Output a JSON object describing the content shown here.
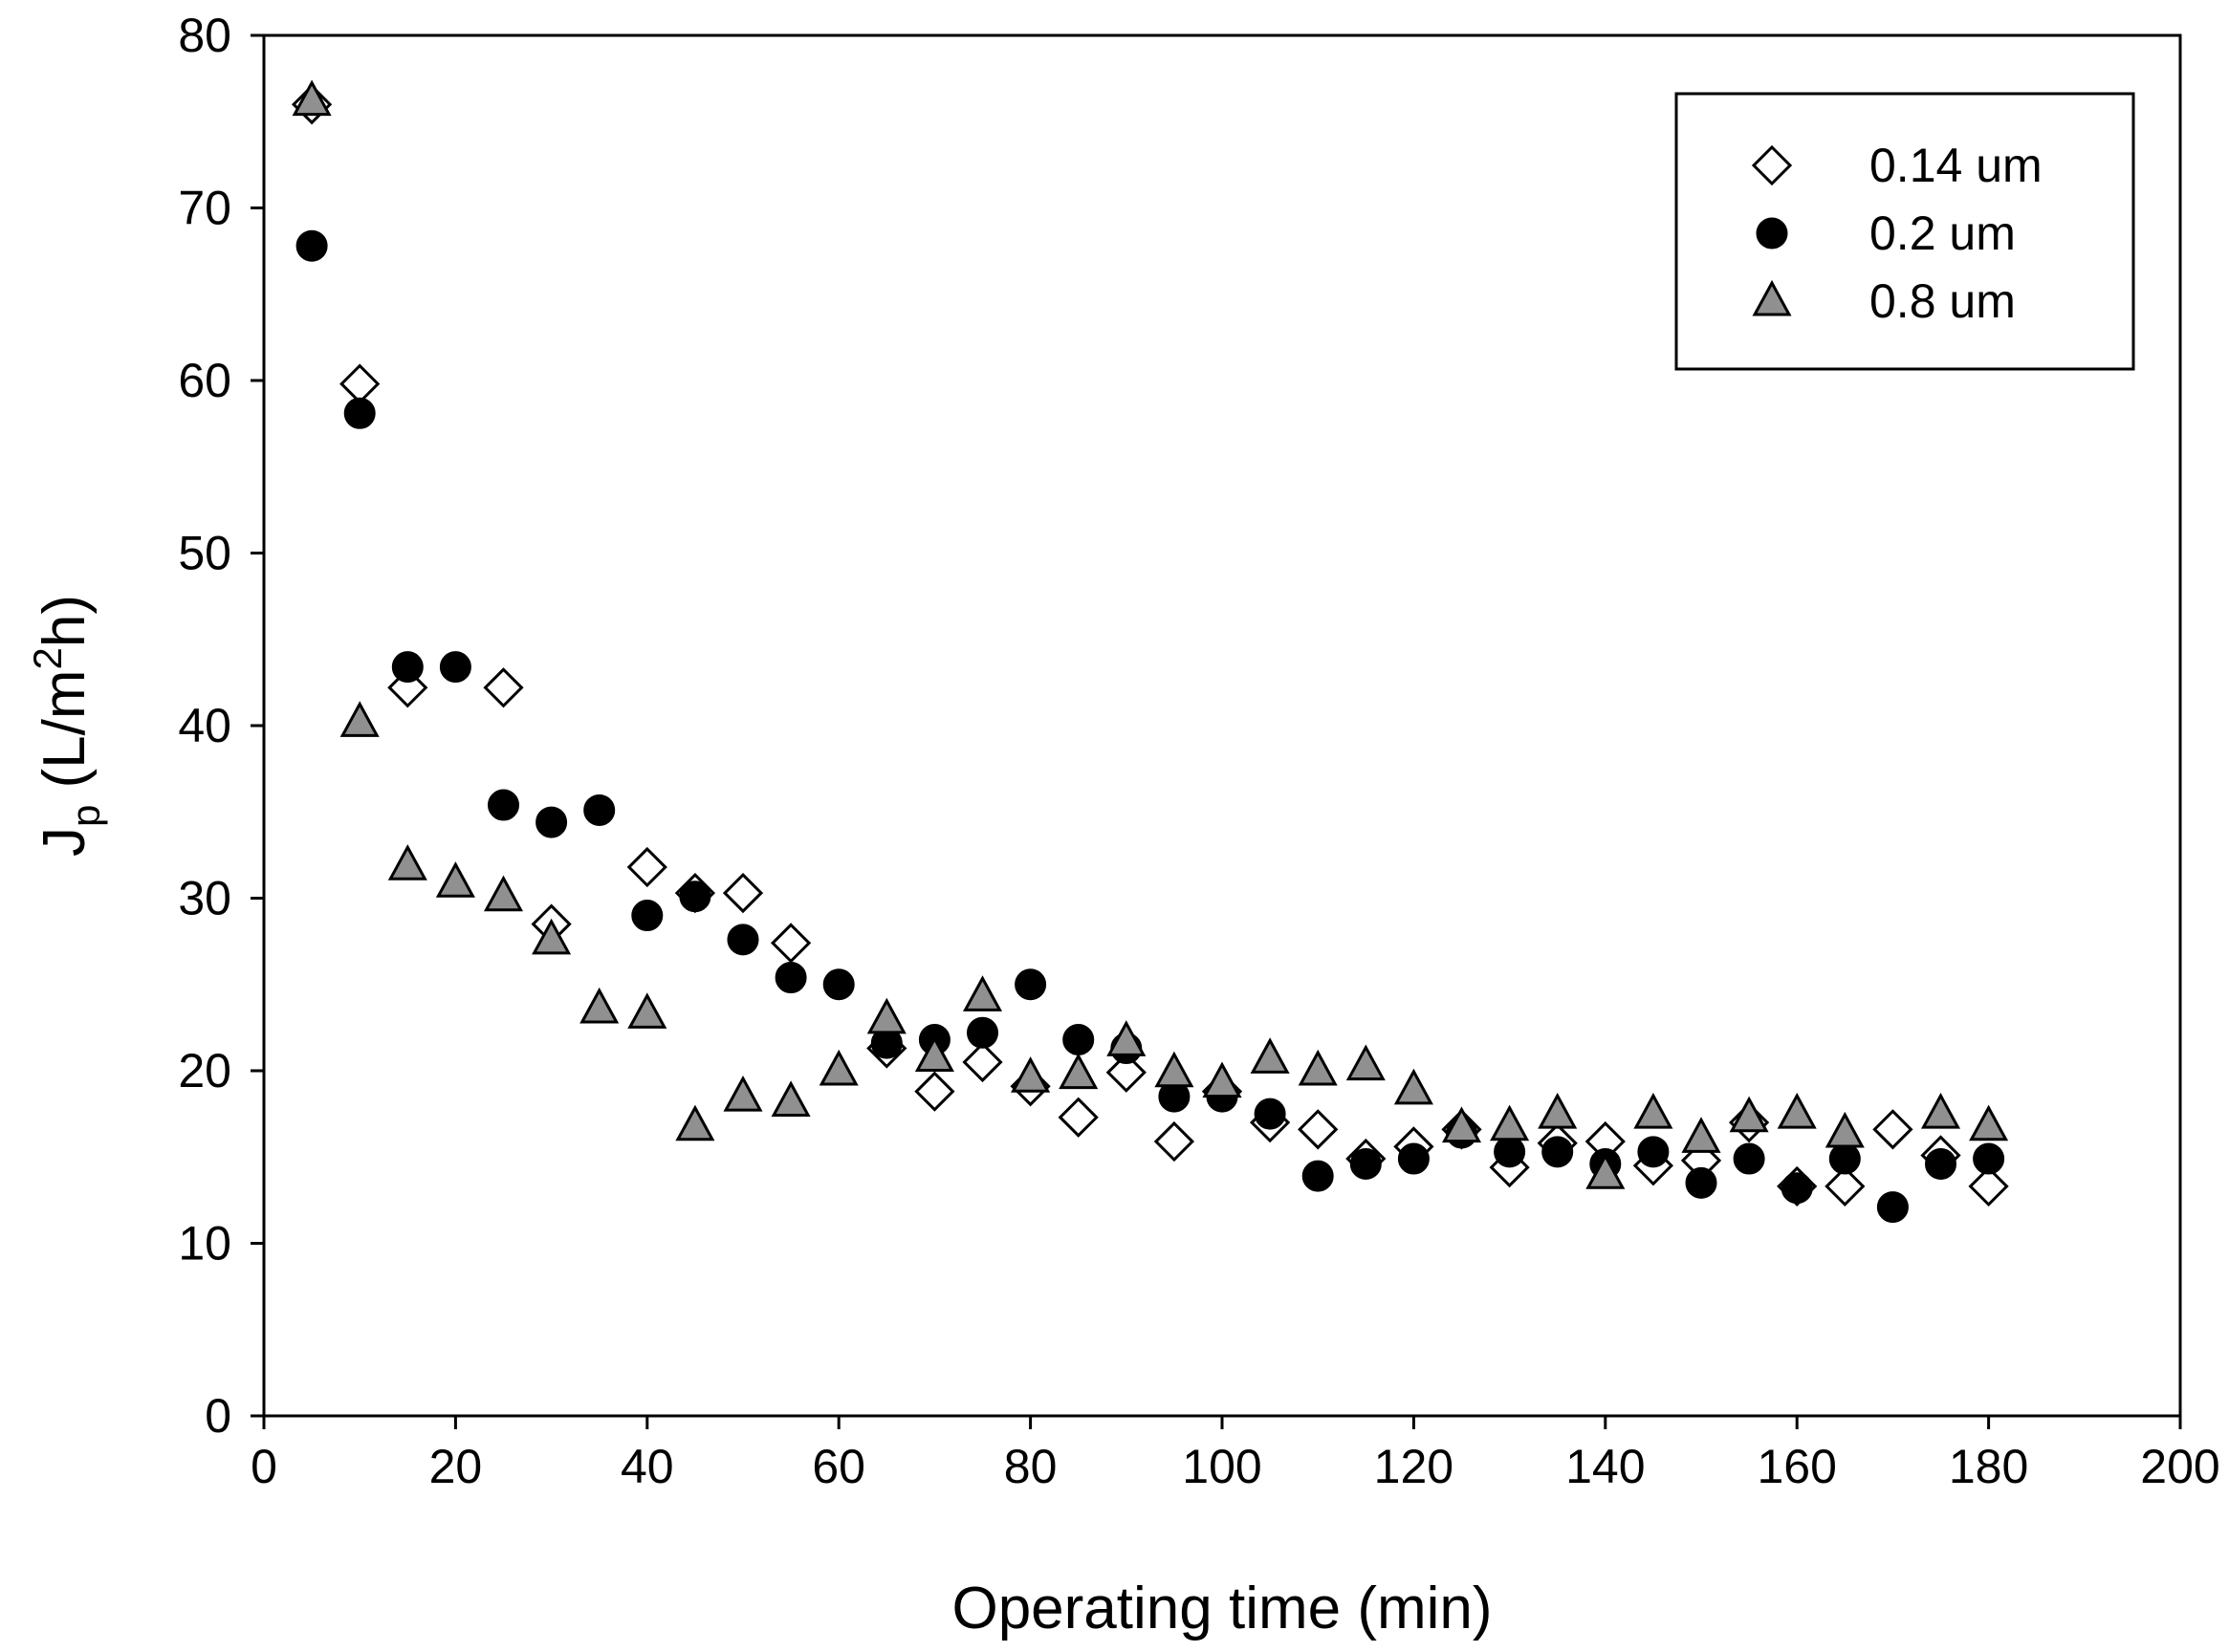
{
  "chart_data": {
    "type": "scatter",
    "title": "",
    "xlabel": "Operating time (min)",
    "ylabel": {
      "main": "J",
      "sub": "p",
      "unit_open": " (L/m",
      "sup": "2",
      "unit_close": "h)"
    },
    "xlim": [
      0,
      200
    ],
    "ylim": [
      0,
      80
    ],
    "xticks": [
      0,
      20,
      40,
      60,
      80,
      100,
      120,
      140,
      160,
      180,
      200
    ],
    "yticks": [
      0,
      10,
      20,
      30,
      40,
      50,
      60,
      70,
      80
    ],
    "legend_position": "top-right",
    "series": [
      {
        "name": "0.14 um",
        "marker": "diamond",
        "fill": "#ffffff",
        "stroke": "#000000",
        "points": [
          [
            5,
            76
          ],
          [
            10,
            59.8
          ],
          [
            15,
            42.2
          ],
          [
            25,
            42.2
          ],
          [
            30,
            28.5
          ],
          [
            40,
            31.8
          ],
          [
            45,
            30.3
          ],
          [
            50,
            30.3
          ],
          [
            55,
            27.4
          ],
          [
            65,
            21.3
          ],
          [
            70,
            18.8
          ],
          [
            75,
            20.5
          ],
          [
            80,
            19.1
          ],
          [
            85,
            17.3
          ],
          [
            90,
            19.9
          ],
          [
            95,
            15.9
          ],
          [
            100,
            18.8
          ],
          [
            105,
            17
          ],
          [
            110,
            16.6
          ],
          [
            115,
            14.9
          ],
          [
            120,
            15.6
          ],
          [
            125,
            16.6
          ],
          [
            130,
            14.4
          ],
          [
            135,
            15.8
          ],
          [
            140,
            15.9
          ],
          [
            145,
            14.5
          ],
          [
            150,
            14.8
          ],
          [
            155,
            17
          ],
          [
            160,
            13.3
          ],
          [
            165,
            13.3
          ],
          [
            170,
            16.6
          ],
          [
            175,
            15.1
          ],
          [
            180,
            13.3
          ]
        ]
      },
      {
        "name": "0.2 um",
        "marker": "circle",
        "fill": "#000000",
        "stroke": "#000000",
        "points": [
          [
            5,
            67.8
          ],
          [
            10,
            58.1
          ],
          [
            15,
            43.4
          ],
          [
            20,
            43.4
          ],
          [
            25,
            35.4
          ],
          [
            30,
            34.4
          ],
          [
            35,
            35.1
          ],
          [
            40,
            29
          ],
          [
            45,
            30.1
          ],
          [
            50,
            27.6
          ],
          [
            55,
            25.4
          ],
          [
            60,
            25
          ],
          [
            65,
            21.6
          ],
          [
            70,
            21.8
          ],
          [
            75,
            22.2
          ],
          [
            80,
            25
          ],
          [
            85,
            21.8
          ],
          [
            90,
            21.3
          ],
          [
            95,
            18.5
          ],
          [
            100,
            18.5
          ],
          [
            105,
            17.5
          ],
          [
            110,
            13.9
          ],
          [
            115,
            14.6
          ],
          [
            120,
            14.9
          ],
          [
            125,
            16.4
          ],
          [
            130,
            15.3
          ],
          [
            135,
            15.3
          ],
          [
            140,
            14.6
          ],
          [
            145,
            15.3
          ],
          [
            150,
            13.5
          ],
          [
            155,
            14.9
          ],
          [
            160,
            13.2
          ],
          [
            165,
            14.9
          ],
          [
            170,
            12.1
          ],
          [
            175,
            14.6
          ],
          [
            180,
            14.9
          ]
        ]
      },
      {
        "name": "0.8 um",
        "marker": "triangle",
        "fill": "#909090",
        "stroke": "#000000",
        "points": [
          [
            5,
            76.2
          ],
          [
            10,
            40.2
          ],
          [
            15,
            31.9
          ],
          [
            20,
            30.9
          ],
          [
            25,
            30.1
          ],
          [
            30,
            27.6
          ],
          [
            35,
            23.6
          ],
          [
            40,
            23.3
          ],
          [
            45,
            16.8
          ],
          [
            50,
            18.5
          ],
          [
            55,
            18.2
          ],
          [
            60,
            20
          ],
          [
            65,
            23
          ],
          [
            70,
            20.8
          ],
          [
            75,
            24.3
          ],
          [
            80,
            19.6
          ],
          [
            85,
            19.8
          ],
          [
            90,
            21.7
          ],
          [
            95,
            19.9
          ],
          [
            100,
            19.3
          ],
          [
            105,
            20.7
          ],
          [
            110,
            20
          ],
          [
            115,
            20.3
          ],
          [
            120,
            18.9
          ],
          [
            125,
            16.7
          ],
          [
            130,
            16.8
          ],
          [
            135,
            17.5
          ],
          [
            140,
            14
          ],
          [
            145,
            17.5
          ],
          [
            150,
            16.1
          ],
          [
            155,
            17.3
          ],
          [
            160,
            17.5
          ],
          [
            165,
            16.4
          ],
          [
            170,
            null
          ],
          [
            175,
            17.5
          ],
          [
            180,
            16.8
          ]
        ]
      }
    ]
  }
}
